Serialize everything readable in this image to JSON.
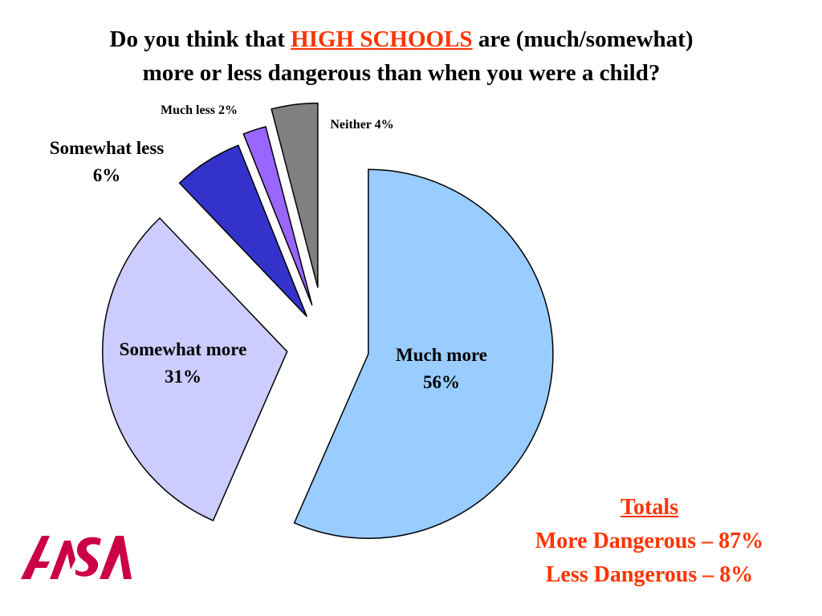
{
  "title": {
    "prefix": "Do you think that",
    "emphasis": "HIGH SCHOOLS",
    "suffix": "are (much/somewhat)",
    "line2": "more or less dangerous than when you were a child?"
  },
  "chart_data": {
    "type": "pie",
    "exploded": true,
    "slices": [
      {
        "label": "Much more",
        "value": 56,
        "display": "56%",
        "color": "#99ccff"
      },
      {
        "label": "Somewhat more",
        "value": 31,
        "display": "31%",
        "color": "#ccccff"
      },
      {
        "label": "Somewhat less",
        "value": 6,
        "display": "6%",
        "color": "#3333cc"
      },
      {
        "label": "Much less",
        "value": 2,
        "display": "2%",
        "color": "#9966ff"
      },
      {
        "label": "Neither",
        "value": 4,
        "display": "4%",
        "color": "#808080"
      }
    ]
  },
  "totals": {
    "heading": "Totals",
    "more": "More Dangerous – 87%",
    "less": "Less Dangerous –   8%"
  },
  "logo": {
    "name": "asa-logo",
    "text": "ASA",
    "color": "#cc0044"
  }
}
